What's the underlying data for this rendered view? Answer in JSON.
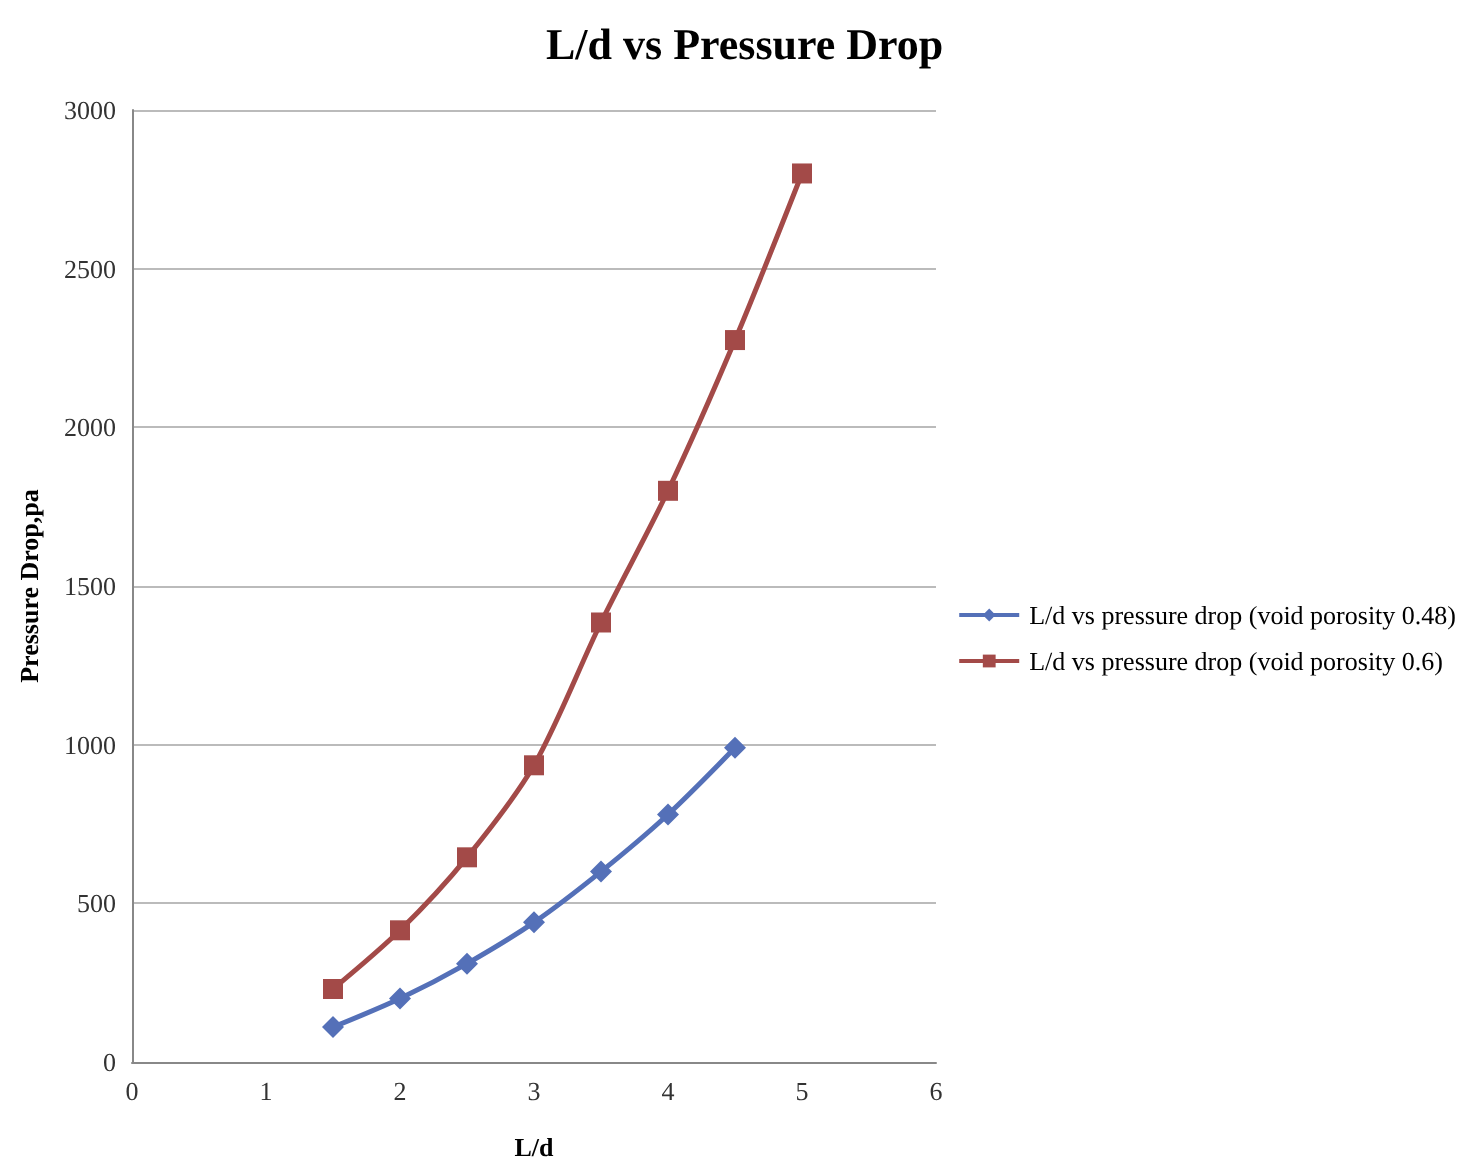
{
  "chart_data": {
    "type": "line",
    "title": "L/d vs Pressure Drop",
    "xlabel": "L/d",
    "ylabel": "Pressure Drop,pa",
    "x": [
      1.5,
      2,
      2.5,
      3,
      3.5,
      4,
      4.5,
      5
    ],
    "series": [
      {
        "name": "L/d vs pressure drop (void porosity 0.48)",
        "color": "#5470b8",
        "marker": "diamond",
        "values": [
          110,
          200,
          310,
          440,
          600,
          780,
          990,
          null
        ]
      },
      {
        "name": "L/d vs pressure drop (void porosity 0.6)",
        "color": "#a34a48",
        "marker": "square",
        "values": [
          230,
          415,
          645,
          935,
          1385,
          1800,
          2275,
          2800
        ]
      }
    ],
    "xlim": [
      0,
      6
    ],
    "xticks": [
      0,
      1,
      2,
      3,
      4,
      5,
      6
    ],
    "ylim": [
      0,
      3000
    ],
    "yticks": [
      0,
      500,
      1000,
      1500,
      2000,
      2500,
      3000
    ],
    "grid": "y",
    "legend": "right",
    "line_style": "solid"
  }
}
